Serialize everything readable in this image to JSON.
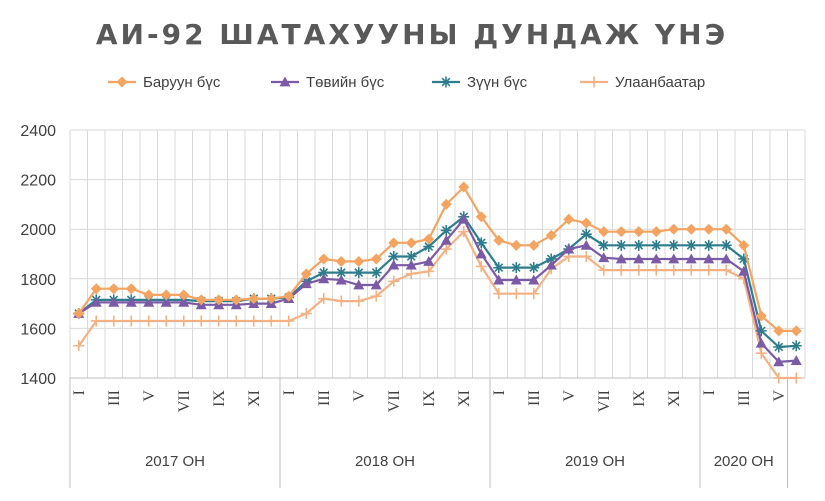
{
  "chart_data": {
    "type": "line",
    "title": "АИ-92 ШАТАХУУНЫ ДУНДАЖ ҮНЭ",
    "ylim": [
      1400,
      2400
    ],
    "yticks": [
      "1400",
      "1600",
      "1800",
      "2000",
      "2200",
      "2400"
    ],
    "grid": true,
    "legend_position": "top",
    "xtick_labels": [
      "I",
      "III",
      "V",
      "VII",
      "IX",
      "XI",
      "I",
      "III",
      "V",
      "VII",
      "IX",
      "XI",
      "I",
      "III",
      "V",
      "VII",
      "IX",
      "XI",
      "I",
      "III",
      "V"
    ],
    "year_labels": [
      "2017 ОН",
      "2018 ОН",
      "2019 ОН",
      "2020 ОН"
    ],
    "year_month_counts": [
      12,
      12,
      12,
      5
    ],
    "series": [
      {
        "name": "Баруун бүс",
        "color": "#f4a460",
        "marker": "diamond",
        "values": [
          1660,
          1760,
          1760,
          1760,
          1735,
          1735,
          1735,
          1715,
          1715,
          1715,
          1720,
          1720,
          1730,
          1820,
          1880,
          1870,
          1870,
          1880,
          1945,
          1945,
          1960,
          2100,
          2170,
          2050,
          1955,
          1935,
          1935,
          1975,
          2040,
          2025,
          1990,
          1990,
          1990,
          1990,
          2000,
          2000,
          2000,
          2000,
          1935,
          1650,
          1590,
          1590
        ]
      },
      {
        "name": "Төвийн бүс",
        "color": "#7b5aa6",
        "marker": "triangle",
        "values": [
          1660,
          1705,
          1705,
          1705,
          1705,
          1705,
          1705,
          1695,
          1695,
          1695,
          1700,
          1700,
          1720,
          1780,
          1800,
          1795,
          1775,
          1775,
          1855,
          1855,
          1870,
          1955,
          2040,
          1900,
          1795,
          1795,
          1795,
          1855,
          1920,
          1935,
          1885,
          1880,
          1880,
          1880,
          1880,
          1880,
          1880,
          1880,
          1830,
          1540,
          1465,
          1470
        ]
      },
      {
        "name": "Зүүн бүс",
        "color": "#2e7d8c",
        "marker": "asterisk",
        "values": [
          1660,
          1715,
          1715,
          1715,
          1715,
          1715,
          1715,
          1710,
          1710,
          1710,
          1720,
          1720,
          1725,
          1790,
          1825,
          1825,
          1825,
          1825,
          1890,
          1890,
          1930,
          1995,
          2050,
          1945,
          1845,
          1845,
          1845,
          1880,
          1920,
          1980,
          1935,
          1935,
          1935,
          1935,
          1935,
          1935,
          1935,
          1935,
          1880,
          1590,
          1525,
          1530
        ]
      },
      {
        "name": "Улаанбаатар",
        "color": "#f4b183",
        "marker": "plus",
        "values": [
          1530,
          1630,
          1630,
          1630,
          1630,
          1630,
          1630,
          1630,
          1630,
          1630,
          1630,
          1630,
          1630,
          1660,
          1720,
          1710,
          1710,
          1730,
          1790,
          1820,
          1830,
          1920,
          1990,
          1850,
          1740,
          1740,
          1740,
          1840,
          1890,
          1890,
          1835,
          1835,
          1835,
          1835,
          1835,
          1835,
          1835,
          1835,
          1800,
          1500,
          1400,
          1400
        ]
      }
    ]
  }
}
